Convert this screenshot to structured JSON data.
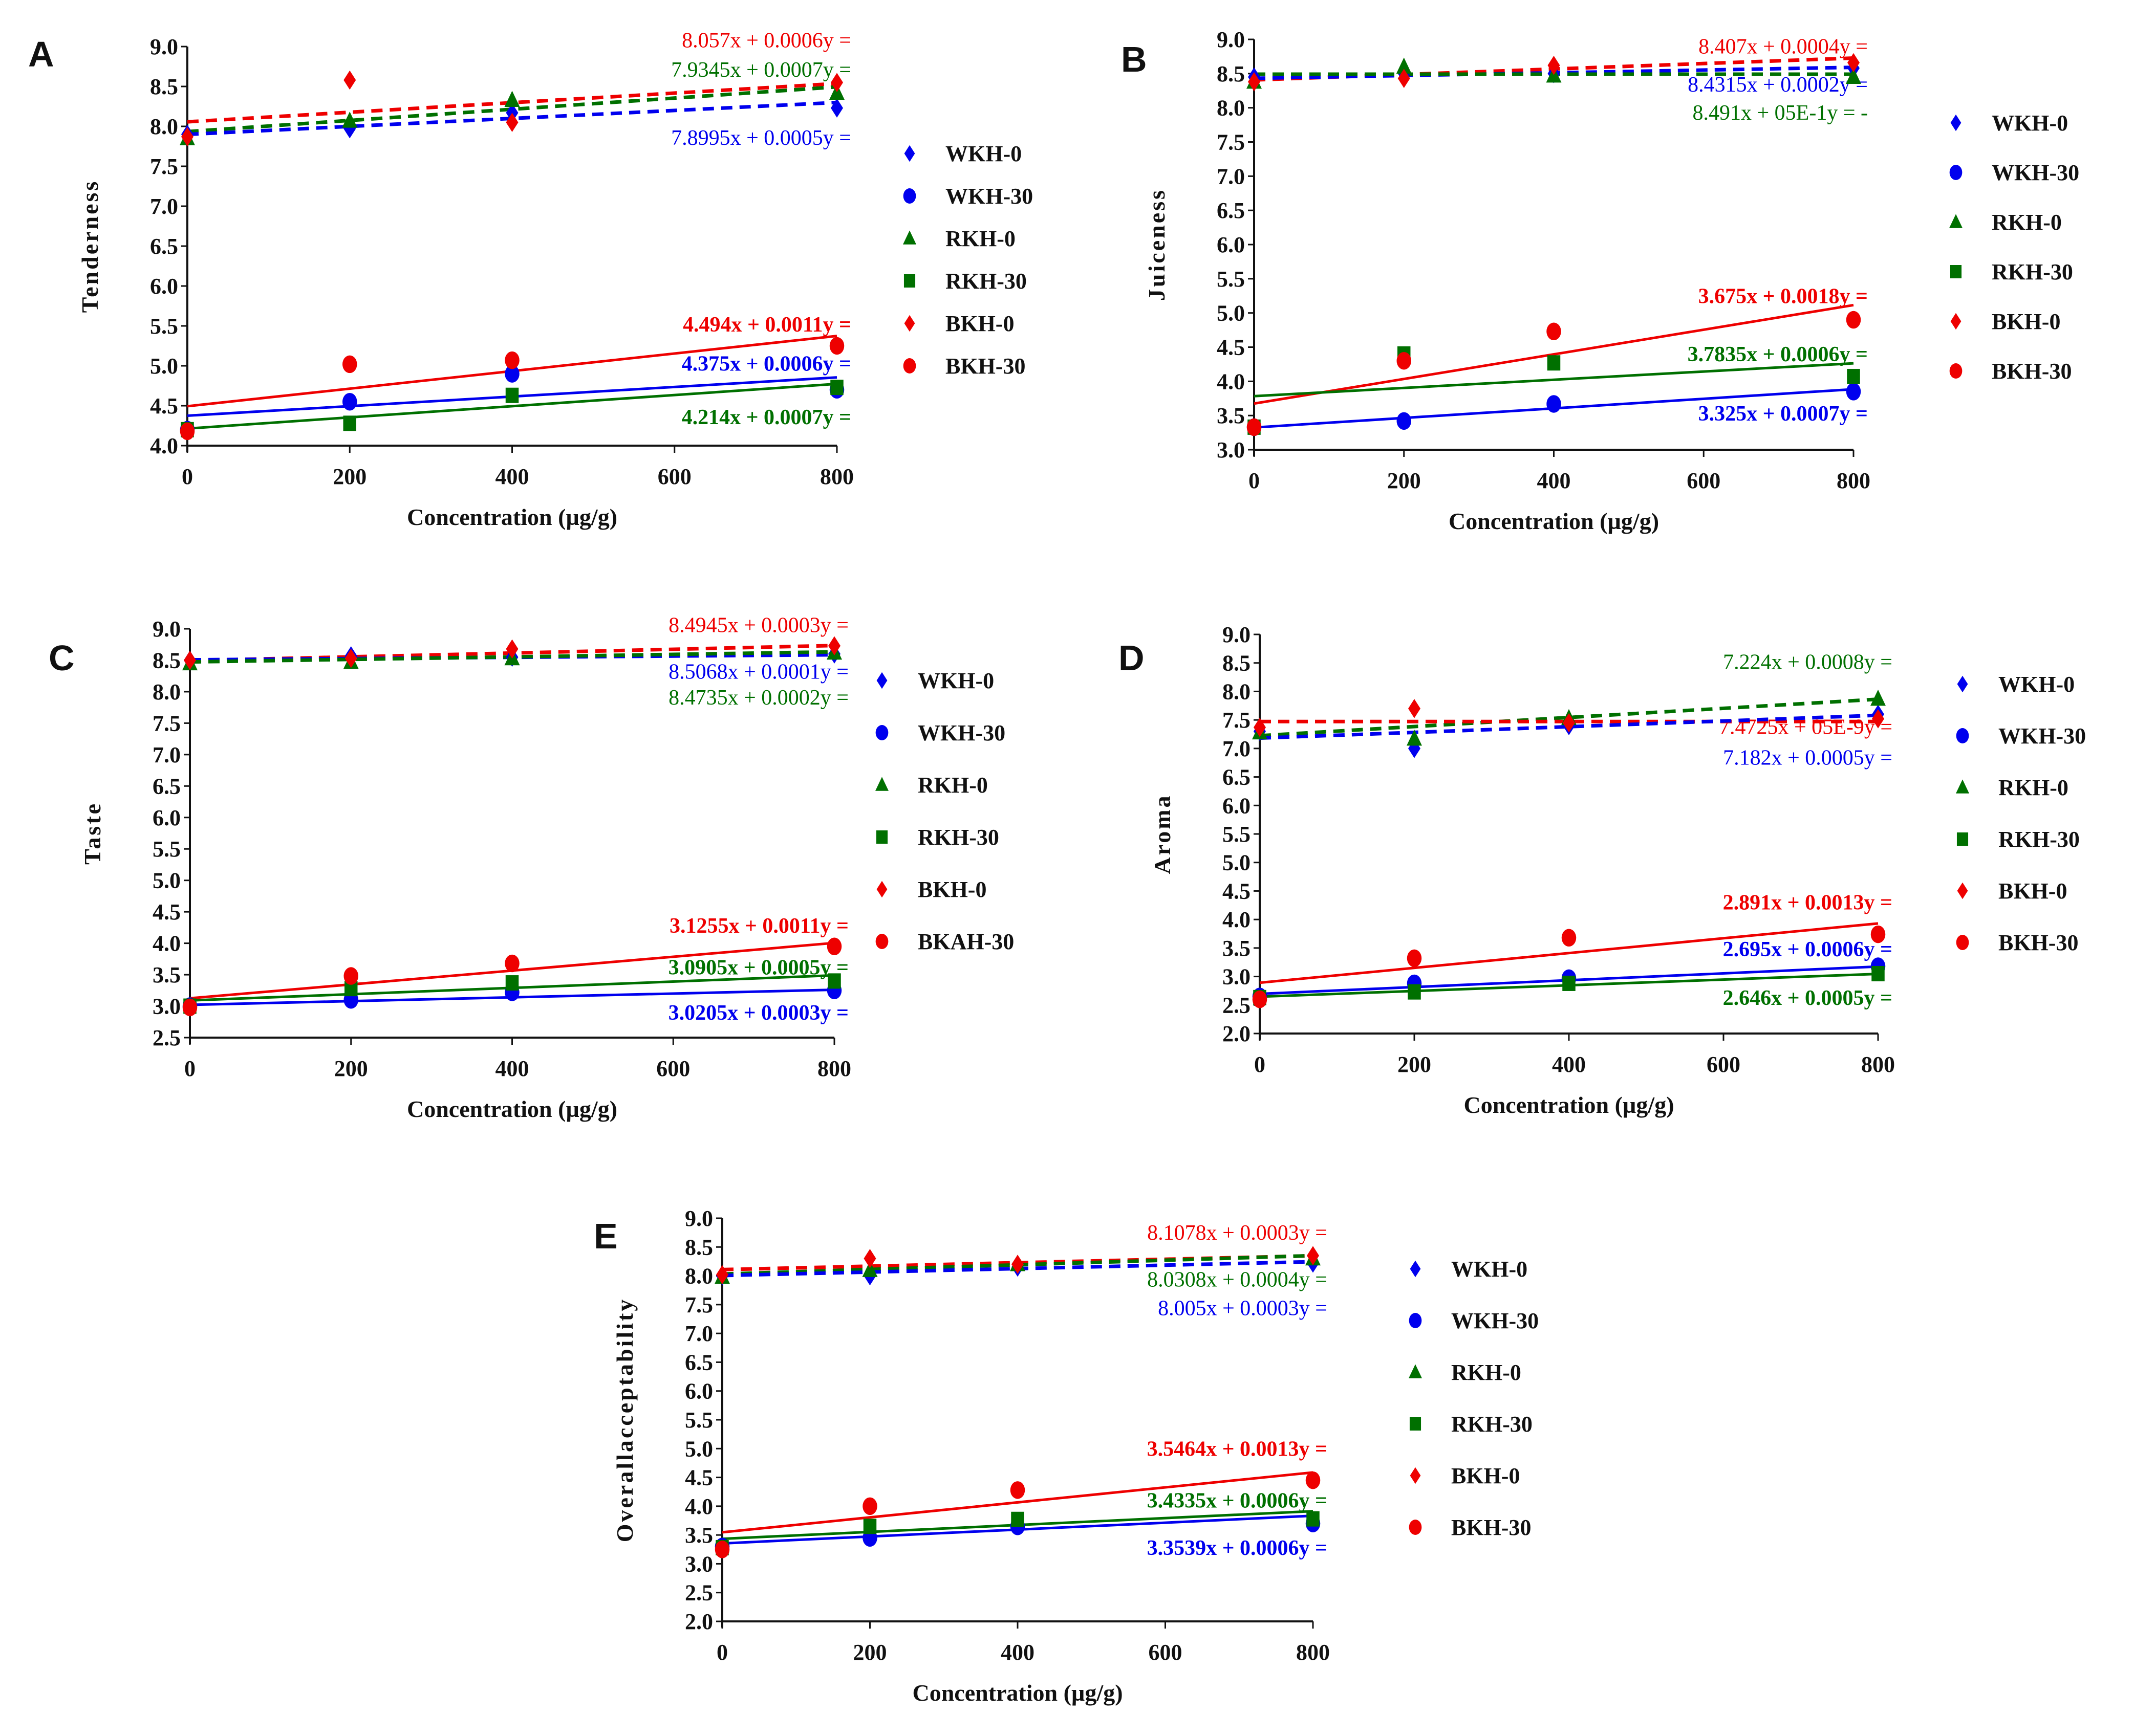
{
  "colors": {
    "WKH": "#0000ee",
    "RKH": "#007000",
    "BKH": "#ee0000",
    "axis": "#111111"
  },
  "chart_data": [
    {
      "type": "scatter",
      "panel": "A",
      "xlabel": "Concentration (µg/g)",
      "ylabel": "Tenderness",
      "x": [
        0,
        200,
        400,
        800
      ],
      "xticks": [
        "0",
        "200",
        "400",
        "600",
        "800"
      ],
      "xlim": [
        0,
        800
      ],
      "ylim": [
        4.0,
        9.0
      ],
      "yticks": [
        "4.0",
        "4.5",
        "5.0",
        "5.5",
        "6.0",
        "6.5",
        "7.0",
        "7.5",
        "8.0",
        "8.5",
        "9.0"
      ],
      "series": [
        {
          "name": "WKH-0",
          "marker": "diamond",
          "color": "#0000ee",
          "values": [
            7.9,
            7.97,
            8.17,
            8.23
          ]
        },
        {
          "name": "WKH-30",
          "marker": "circle",
          "color": "#0000ee",
          "values": [
            4.2,
            4.55,
            4.9,
            4.7
          ]
        },
        {
          "name": "RKH-0",
          "marker": "triangle",
          "color": "#007000",
          "values": [
            7.85,
            8.07,
            8.33,
            8.42
          ]
        },
        {
          "name": "RKH-30",
          "marker": "square",
          "color": "#007000",
          "values": [
            4.2,
            4.28,
            4.63,
            4.73
          ]
        },
        {
          "name": "BKH-0",
          "marker": "diamond",
          "color": "#ee0000",
          "values": [
            7.87,
            8.58,
            8.05,
            8.55
          ]
        },
        {
          "name": "BKH-30",
          "marker": "circle",
          "color": "#ee0000",
          "values": [
            4.18,
            5.02,
            5.07,
            5.25
          ]
        }
      ],
      "trendlines": [
        {
          "series": "BKH-0",
          "intercept": 8.057,
          "slope": 0.0006,
          "dashed": true,
          "color": "#ee0000",
          "label": "8.057x + 0.0006y ="
        },
        {
          "series": "RKH-0",
          "intercept": 7.9345,
          "slope": 0.0007,
          "dashed": true,
          "color": "#007000",
          "label": "7.9345x + 0.0007y ="
        },
        {
          "series": "WKH-0",
          "intercept": 7.8995,
          "slope": 0.0005,
          "dashed": true,
          "color": "#0000ee",
          "label": "7.8995x + 0.0005y ="
        },
        {
          "series": "BKH-30",
          "intercept": 4.494,
          "slope": 0.0011,
          "dashed": false,
          "color": "#ee0000",
          "label": "4.494x + 0.0011y ="
        },
        {
          "series": "WKH-30",
          "intercept": 4.375,
          "slope": 0.0006,
          "dashed": false,
          "color": "#0000ee",
          "label": "4.375x + 0.0006y ="
        },
        {
          "series": "RKH-30",
          "intercept": 4.214,
          "slope": 0.0007,
          "dashed": false,
          "color": "#007000",
          "label": "4.214x + 0.0007y ="
        }
      ],
      "legend": "right"
    },
    {
      "type": "scatter",
      "panel": "B",
      "xlabel": "Concentration (µg/g)",
      "ylabel": "Juiceness",
      "x": [
        0,
        200,
        400,
        800
      ],
      "xticks": [
        "0",
        "200",
        "400",
        "600",
        "800"
      ],
      "xlim": [
        0,
        800
      ],
      "ylim": [
        3.0,
        9.0
      ],
      "yticks": [
        "3.0",
        "3.5",
        "4.0",
        "4.5",
        "5.0",
        "5.5",
        "6.0",
        "6.5",
        "7.0",
        "7.5",
        "8.0",
        "8.5",
        "9.0"
      ],
      "series": [
        {
          "name": "WKH-0",
          "marker": "diamond",
          "color": "#0000ee",
          "values": [
            8.45,
            8.5,
            8.5,
            8.58
          ]
        },
        {
          "name": "WKH-30",
          "marker": "circle",
          "color": "#0000ee",
          "values": [
            3.33,
            3.42,
            3.67,
            3.85
          ]
        },
        {
          "name": "RKH-0",
          "marker": "triangle",
          "color": "#007000",
          "values": [
            8.38,
            8.6,
            8.47,
            8.45
          ]
        },
        {
          "name": "RKH-30",
          "marker": "square",
          "color": "#007000",
          "values": [
            3.33,
            4.4,
            4.27,
            4.07
          ]
        },
        {
          "name": "BKH-0",
          "marker": "diamond",
          "color": "#ee0000",
          "values": [
            8.38,
            8.43,
            8.62,
            8.66
          ]
        },
        {
          "name": "BKH-30",
          "marker": "circle",
          "color": "#ee0000",
          "values": [
            3.33,
            4.3,
            4.73,
            4.9
          ]
        }
      ],
      "trendlines": [
        {
          "series": "BKH-0",
          "intercept": 8.407,
          "slope": 0.0004,
          "dashed": true,
          "color": "#ee0000",
          "label": "8.407x + 0.0004y ="
        },
        {
          "series": "WKH-0",
          "intercept": 8.4315,
          "slope": 0.0002,
          "dashed": true,
          "color": "#0000ee",
          "label": "8.4315x + 0.0002y ="
        },
        {
          "series": "RKH-0",
          "intercept": 8.491,
          "slope": 0.0,
          "dashed": true,
          "color": "#007000",
          "label": "8.491x + 05E-1y = -"
        },
        {
          "series": "BKH-30",
          "intercept": 3.675,
          "slope": 0.0018,
          "dashed": false,
          "color": "#ee0000",
          "label": "3.675x + 0.0018y ="
        },
        {
          "series": "RKH-30",
          "intercept": 3.7835,
          "slope": 0.0006,
          "dashed": false,
          "color": "#007000",
          "label": "3.7835x + 0.0006y ="
        },
        {
          "series": "WKH-30",
          "intercept": 3.325,
          "slope": 0.0007,
          "dashed": false,
          "color": "#0000ee",
          "label": "3.325x + 0.0007y ="
        }
      ],
      "legend": "right"
    },
    {
      "type": "scatter",
      "panel": "C",
      "xlabel": "Concentration (µg/g)",
      "ylabel": "Taste",
      "x": [
        0,
        200,
        400,
        800
      ],
      "xticks": [
        "0",
        "200",
        "400",
        "600",
        "800"
      ],
      "xlim": [
        0,
        800
      ],
      "ylim": [
        2.5,
        9.0
      ],
      "yticks": [
        "2.5",
        "3.0",
        "3.5",
        "4.0",
        "4.5",
        "5.0",
        "5.5",
        "6.0",
        "6.5",
        "7.0",
        "7.5",
        "8.0",
        "8.5",
        "9.0"
      ],
      "series": [
        {
          "name": "WKH-0",
          "marker": "diamond",
          "color": "#0000ee",
          "values": [
            8.5,
            8.57,
            8.55,
            8.6
          ]
        },
        {
          "name": "WKH-30",
          "marker": "circle",
          "color": "#0000ee",
          "values": [
            3.0,
            3.1,
            3.22,
            3.25
          ]
        },
        {
          "name": "RKH-0",
          "marker": "triangle",
          "color": "#007000",
          "values": [
            8.45,
            8.47,
            8.53,
            8.62
          ]
        },
        {
          "name": "RKH-30",
          "marker": "square",
          "color": "#007000",
          "values": [
            3.0,
            3.28,
            3.37,
            3.4
          ]
        },
        {
          "name": "BKH-0",
          "marker": "diamond",
          "color": "#ee0000",
          "values": [
            8.5,
            8.53,
            8.68,
            8.73
          ]
        },
        {
          "name": "BKAH-30",
          "marker": "circle",
          "color": "#ee0000",
          "values": [
            2.98,
            3.48,
            3.68,
            3.95
          ]
        }
      ],
      "trendlines": [
        {
          "series": "BKH-0",
          "intercept": 8.4945,
          "slope": 0.0003,
          "dashed": true,
          "color": "#ee0000",
          "label": "8.4945x + 0.0003y ="
        },
        {
          "series": "WKH-0",
          "intercept": 8.5068,
          "slope": 0.0001,
          "dashed": true,
          "color": "#0000ee",
          "label": "8.5068x + 0.0001y ="
        },
        {
          "series": "RKH-0",
          "intercept": 8.4735,
          "slope": 0.0002,
          "dashed": true,
          "color": "#007000",
          "label": "8.4735x + 0.0002y ="
        },
        {
          "series": "BKAH-30",
          "intercept": 3.1255,
          "slope": 0.0011,
          "dashed": false,
          "color": "#ee0000",
          "label": "3.1255x + 0.0011y ="
        },
        {
          "series": "RKH-30",
          "intercept": 3.0905,
          "slope": 0.0005,
          "dashed": false,
          "color": "#007000",
          "label": "3.0905x + 0.0005y ="
        },
        {
          "series": "WKH-30",
          "intercept": 3.0205,
          "slope": 0.0003,
          "dashed": false,
          "color": "#0000ee",
          "label": "3.0205x + 0.0003y ="
        }
      ],
      "legend": "right"
    },
    {
      "type": "scatter",
      "panel": "D",
      "xlabel": "Concentration (µg/g)",
      "ylabel": "Aroma",
      "x": [
        0,
        200,
        400,
        800
      ],
      "xticks": [
        "0",
        "200",
        "400",
        "600",
        "800"
      ],
      "xlim": [
        0,
        800
      ],
      "ylim": [
        2.0,
        9.0
      ],
      "yticks": [
        "2.0",
        "2.5",
        "3.0",
        "3.5",
        "4.0",
        "4.5",
        "5.0",
        "5.5",
        "6.0",
        "6.5",
        "7.0",
        "7.5",
        "8.0",
        "8.5",
        "9.0"
      ],
      "series": [
        {
          "name": "WKH-0",
          "marker": "diamond",
          "color": "#0000ee",
          "values": [
            7.3,
            7.0,
            7.4,
            7.6
          ]
        },
        {
          "name": "WKH-30",
          "marker": "circle",
          "color": "#0000ee",
          "values": [
            2.65,
            2.88,
            2.97,
            3.18
          ]
        },
        {
          "name": "RKH-0",
          "marker": "triangle",
          "color": "#007000",
          "values": [
            7.28,
            7.17,
            7.53,
            7.87
          ]
        },
        {
          "name": "RKH-30",
          "marker": "square",
          "color": "#007000",
          "values": [
            2.63,
            2.73,
            2.88,
            3.05
          ]
        },
        {
          "name": "BKH-0",
          "marker": "diamond",
          "color": "#ee0000",
          "values": [
            7.37,
            7.7,
            7.45,
            7.52
          ]
        },
        {
          "name": "BKH-30",
          "marker": "circle",
          "color": "#ee0000",
          "values": [
            2.6,
            3.32,
            3.68,
            3.74
          ]
        }
      ],
      "trendlines": [
        {
          "series": "RKH-0",
          "intercept": 7.224,
          "slope": 0.0008,
          "dashed": true,
          "color": "#007000",
          "label": "7.224x + 0.0008y ="
        },
        {
          "series": "BKH-0",
          "intercept": 7.4725,
          "slope": 0.0,
          "dashed": true,
          "color": "#ee0000",
          "label": "7.4725x + 05E-9y ="
        },
        {
          "series": "WKH-0",
          "intercept": 7.182,
          "slope": 0.0005,
          "dashed": true,
          "color": "#0000ee",
          "label": "7.182x + 0.0005y ="
        },
        {
          "series": "BKH-30",
          "intercept": 2.891,
          "slope": 0.0013,
          "dashed": false,
          "color": "#ee0000",
          "label": "2.891x + 0.0013y ="
        },
        {
          "series": "WKH-30",
          "intercept": 2.695,
          "slope": 0.0006,
          "dashed": false,
          "color": "#0000ee",
          "label": "2.695x + 0.0006y ="
        },
        {
          "series": "RKH-30",
          "intercept": 2.646,
          "slope": 0.0005,
          "dashed": false,
          "color": "#007000",
          "label": "2.646x + 0.0005y ="
        }
      ],
      "legend": "right"
    },
    {
      "type": "scatter",
      "panel": "E",
      "xlabel": "Concentration (µg/g)",
      "ylabel": "Overallacceptability",
      "x": [
        0,
        200,
        400,
        800
      ],
      "xticks": [
        "0",
        "200",
        "400",
        "600",
        "800"
      ],
      "xlim": [
        0,
        800
      ],
      "ylim": [
        2.0,
        9.0
      ],
      "yticks": [
        "2.0",
        "2.5",
        "3.0",
        "3.5",
        "4.0",
        "4.5",
        "5.0",
        "5.5",
        "6.0",
        "6.5",
        "7.0",
        "7.5",
        "8.0",
        "8.5",
        "9.0"
      ],
      "series": [
        {
          "name": "WKH-0",
          "marker": "diamond",
          "color": "#0000ee",
          "values": [
            8.0,
            8.0,
            8.15,
            8.22
          ]
        },
        {
          "name": "WKH-30",
          "marker": "circle",
          "color": "#0000ee",
          "values": [
            3.3,
            3.45,
            3.65,
            3.7
          ]
        },
        {
          "name": "RKH-0",
          "marker": "triangle",
          "color": "#007000",
          "values": [
            7.98,
            8.1,
            8.2,
            8.3
          ]
        },
        {
          "name": "RKH-30",
          "marker": "square",
          "color": "#007000",
          "values": [
            3.28,
            3.65,
            3.77,
            3.78
          ]
        },
        {
          "name": "BKH-0",
          "marker": "diamond",
          "color": "#ee0000",
          "values": [
            8.02,
            8.3,
            8.2,
            8.35
          ]
        },
        {
          "name": "BKH-30",
          "marker": "circle",
          "color": "#ee0000",
          "values": [
            3.25,
            4.0,
            4.28,
            4.45
          ]
        }
      ],
      "trendlines": [
        {
          "series": "BKH-0",
          "intercept": 8.1078,
          "slope": 0.0003,
          "dashed": true,
          "color": "#ee0000",
          "label": "8.1078x + 0.0003y ="
        },
        {
          "series": "RKH-0",
          "intercept": 8.0308,
          "slope": 0.0004,
          "dashed": true,
          "color": "#007000",
          "label": "8.0308x + 0.0004y ="
        },
        {
          "series": "WKH-0",
          "intercept": 8.005,
          "slope": 0.0003,
          "dashed": true,
          "color": "#0000ee",
          "label": "8.005x + 0.0003y ="
        },
        {
          "series": "BKH-30",
          "intercept": 3.5464,
          "slope": 0.0013,
          "dashed": false,
          "color": "#ee0000",
          "label": "3.5464x + 0.0013y ="
        },
        {
          "series": "RKH-30",
          "intercept": 3.4335,
          "slope": 0.0006,
          "dashed": false,
          "color": "#007000",
          "label": "3.4335x + 0.0006y ="
        },
        {
          "series": "WKH-30",
          "intercept": 3.3539,
          "slope": 0.0006,
          "dashed": false,
          "color": "#0000ee",
          "label": "3.3539x + 0.0006y ="
        }
      ],
      "legend": "right"
    }
  ]
}
